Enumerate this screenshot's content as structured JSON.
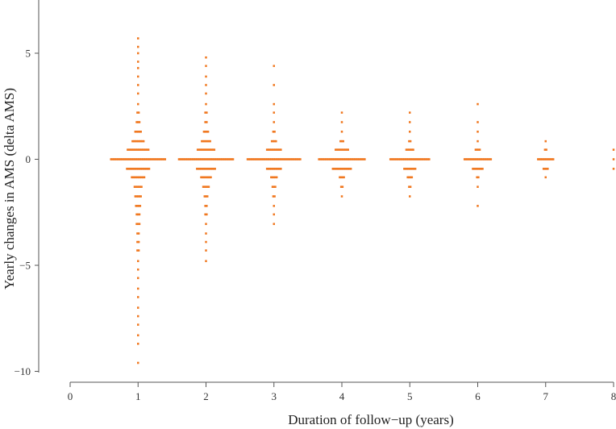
{
  "chart_data": {
    "type": "scatter",
    "xlabel": "Duration of follow−up (years)",
    "ylabel": "Yearly changes in AMS (delta AMS)",
    "xlim": [
      0,
      8
    ],
    "ylim": [
      -10,
      7
    ],
    "xticks": [
      0,
      1,
      2,
      3,
      4,
      5,
      6,
      7,
      8
    ],
    "xtick_labels": [
      "0",
      "1",
      "2",
      "3",
      "4",
      "5",
      "6",
      "7",
      "8"
    ],
    "yticks": [
      -10,
      -5,
      0,
      5
    ],
    "ytick_labels": [
      "−10",
      "−5",
      "0",
      "5"
    ],
    "marker_color": "#f07820",
    "grid": false,
    "legend": "none",
    "groups": [
      {
        "x": 1,
        "rows": [
          {
            "y": 5.7,
            "n": 1
          },
          {
            "y": 5.3,
            "n": 1
          },
          {
            "y": 5.0,
            "n": 1
          },
          {
            "y": 4.6,
            "n": 1
          },
          {
            "y": 4.3,
            "n": 1
          },
          {
            "y": 3.9,
            "n": 1
          },
          {
            "y": 3.5,
            "n": 1
          },
          {
            "y": 3.1,
            "n": 1
          },
          {
            "y": 2.6,
            "n": 1
          },
          {
            "y": 2.2,
            "n": 2
          },
          {
            "y": 1.75,
            "n": 3
          },
          {
            "y": 1.3,
            "n": 5
          },
          {
            "y": 0.85,
            "n": 9
          },
          {
            "y": 0.45,
            "n": 16
          },
          {
            "y": 0.0,
            "n": 40
          },
          {
            "y": -0.45,
            "n": 17
          },
          {
            "y": -0.85,
            "n": 10
          },
          {
            "y": -1.3,
            "n": 6
          },
          {
            "y": -1.75,
            "n": 5
          },
          {
            "y": -2.2,
            "n": 4
          },
          {
            "y": -2.6,
            "n": 3
          },
          {
            "y": -3.05,
            "n": 3
          },
          {
            "y": -3.5,
            "n": 2
          },
          {
            "y": -3.9,
            "n": 2
          },
          {
            "y": -4.3,
            "n": 2
          },
          {
            "y": -4.8,
            "n": 1
          },
          {
            "y": -5.2,
            "n": 1
          },
          {
            "y": -5.6,
            "n": 1
          },
          {
            "y": -6.1,
            "n": 1
          },
          {
            "y": -6.5,
            "n": 1
          },
          {
            "y": -7.0,
            "n": 1
          },
          {
            "y": -7.4,
            "n": 1
          },
          {
            "y": -7.8,
            "n": 1
          },
          {
            "y": -8.3,
            "n": 1
          },
          {
            "y": -8.7,
            "n": 1
          },
          {
            "y": -9.6,
            "n": 1
          }
        ]
      },
      {
        "x": 2,
        "rows": [
          {
            "y": 4.8,
            "n": 1
          },
          {
            "y": 4.4,
            "n": 1
          },
          {
            "y": 3.9,
            "n": 1
          },
          {
            "y": 3.5,
            "n": 1
          },
          {
            "y": 3.1,
            "n": 1
          },
          {
            "y": 2.6,
            "n": 1
          },
          {
            "y": 2.2,
            "n": 2
          },
          {
            "y": 1.75,
            "n": 2
          },
          {
            "y": 1.3,
            "n": 4
          },
          {
            "y": 0.85,
            "n": 7
          },
          {
            "y": 0.45,
            "n": 13
          },
          {
            "y": 0.0,
            "n": 40
          },
          {
            "y": -0.45,
            "n": 14
          },
          {
            "y": -0.85,
            "n": 8
          },
          {
            "y": -1.3,
            "n": 5
          },
          {
            "y": -1.75,
            "n": 3
          },
          {
            "y": -2.2,
            "n": 2
          },
          {
            "y": -2.6,
            "n": 2
          },
          {
            "y": -3.05,
            "n": 1
          },
          {
            "y": -3.5,
            "n": 1
          },
          {
            "y": -3.9,
            "n": 1
          },
          {
            "y": -4.3,
            "n": 1
          },
          {
            "y": -4.8,
            "n": 1
          }
        ]
      },
      {
        "x": 3,
        "rows": [
          {
            "y": 4.4,
            "n": 1
          },
          {
            "y": 3.5,
            "n": 1
          },
          {
            "y": 2.6,
            "n": 1
          },
          {
            "y": 2.2,
            "n": 1
          },
          {
            "y": 1.75,
            "n": 1
          },
          {
            "y": 1.3,
            "n": 2
          },
          {
            "y": 0.85,
            "n": 4
          },
          {
            "y": 0.45,
            "n": 11
          },
          {
            "y": 0.0,
            "n": 39
          },
          {
            "y": -0.45,
            "n": 11
          },
          {
            "y": -0.85,
            "n": 5
          },
          {
            "y": -1.3,
            "n": 3
          },
          {
            "y": -1.75,
            "n": 2
          },
          {
            "y": -2.2,
            "n": 1
          },
          {
            "y": -2.6,
            "n": 1
          },
          {
            "y": -3.05,
            "n": 1
          }
        ]
      },
      {
        "x": 4,
        "rows": [
          {
            "y": 2.2,
            "n": 1
          },
          {
            "y": 1.75,
            "n": 1
          },
          {
            "y": 1.3,
            "n": 1
          },
          {
            "y": 0.85,
            "n": 3
          },
          {
            "y": 0.45,
            "n": 10
          },
          {
            "y": 0.0,
            "n": 34
          },
          {
            "y": -0.45,
            "n": 14
          },
          {
            "y": -0.85,
            "n": 4
          },
          {
            "y": -1.3,
            "n": 2
          },
          {
            "y": -1.75,
            "n": 1
          }
        ]
      },
      {
        "x": 5,
        "rows": [
          {
            "y": 2.2,
            "n": 1
          },
          {
            "y": 1.75,
            "n": 1
          },
          {
            "y": 1.3,
            "n": 1
          },
          {
            "y": 0.85,
            "n": 2
          },
          {
            "y": 0.45,
            "n": 6
          },
          {
            "y": 0.0,
            "n": 29
          },
          {
            "y": -0.45,
            "n": 9
          },
          {
            "y": -0.85,
            "n": 4
          },
          {
            "y": -1.3,
            "n": 2
          },
          {
            "y": -1.75,
            "n": 1
          }
        ]
      },
      {
        "x": 6,
        "rows": [
          {
            "y": 2.6,
            "n": 1
          },
          {
            "y": 1.75,
            "n": 1
          },
          {
            "y": 1.3,
            "n": 1
          },
          {
            "y": 0.85,
            "n": 1
          },
          {
            "y": 0.45,
            "n": 4
          },
          {
            "y": 0.0,
            "n": 20
          },
          {
            "y": -0.45,
            "n": 8
          },
          {
            "y": -0.85,
            "n": 2
          },
          {
            "y": -1.3,
            "n": 1
          },
          {
            "y": -2.2,
            "n": 1
          }
        ]
      },
      {
        "x": 7,
        "rows": [
          {
            "y": 0.85,
            "n": 1
          },
          {
            "y": 0.45,
            "n": 2
          },
          {
            "y": 0.0,
            "n": 12
          },
          {
            "y": -0.45,
            "n": 4
          },
          {
            "y": -0.85,
            "n": 1
          }
        ]
      },
      {
        "x": 8,
        "rows": [
          {
            "y": 0.45,
            "n": 1
          },
          {
            "y": 0.0,
            "n": 1
          },
          {
            "y": -0.45,
            "n": 1
          }
        ]
      }
    ]
  }
}
